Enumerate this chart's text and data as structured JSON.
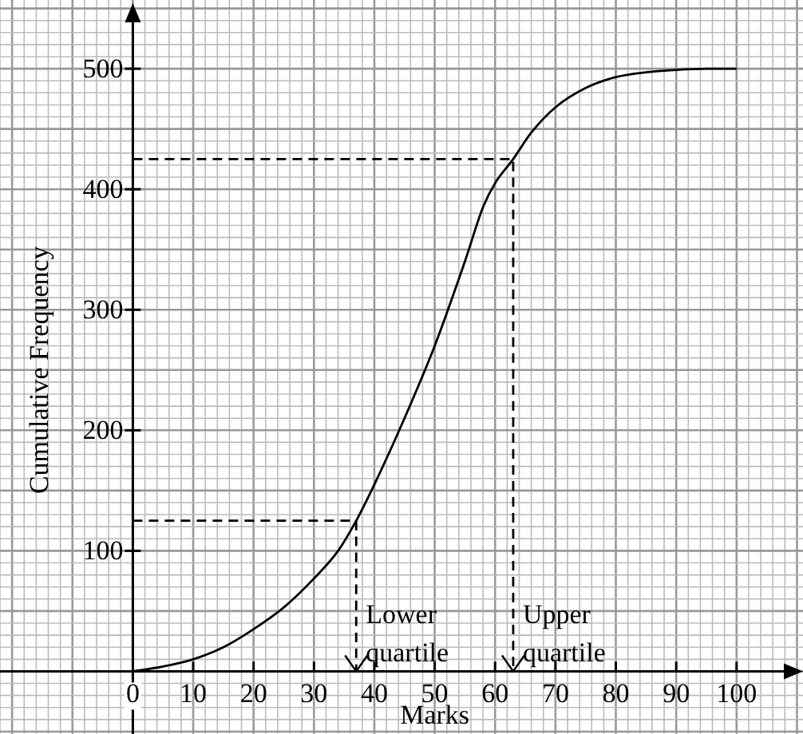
{
  "chart_data": {
    "type": "line",
    "xlabel": "Marks",
    "ylabel": "Cumulative Frequency",
    "xlim": [
      -22,
      111
    ],
    "ylim": [
      -52,
      557
    ],
    "xticks": [
      0,
      10,
      20,
      30,
      40,
      50,
      60,
      70,
      80,
      90,
      100
    ],
    "yticks": [
      100,
      200,
      300,
      400,
      500
    ],
    "grid": true,
    "legend": false,
    "marker": "none",
    "series": [
      {
        "color": "#000000",
        "x": [
          0,
          5,
          10,
          15,
          20,
          25,
          30,
          34,
          37,
          40,
          45,
          50,
          55,
          58,
          60,
          63,
          66,
          70,
          75,
          80,
          85,
          90,
          95,
          100
        ],
        "values": [
          0,
          4,
          10,
          20,
          35,
          53,
          77,
          100,
          125,
          155,
          210,
          270,
          340,
          385,
          405,
          425,
          447,
          468,
          484,
          493,
          497,
          499,
          500,
          500
        ]
      },
      {
        "color": "#000000",
        "line_style": "dashed",
        "x": [
          0,
          37,
          37
        ],
        "values": [
          125,
          125,
          0
        ]
      },
      {
        "color": "#000000",
        "line_style": "dashed",
        "x": [
          0,
          63,
          63
        ],
        "values": [
          425,
          425,
          0
        ]
      }
    ],
    "annotations": [
      {
        "text": "Lower quartile",
        "x": 37,
        "y": 0
      },
      {
        "text": "Upper quartile",
        "x": 63,
        "y": 0
      }
    ]
  }
}
